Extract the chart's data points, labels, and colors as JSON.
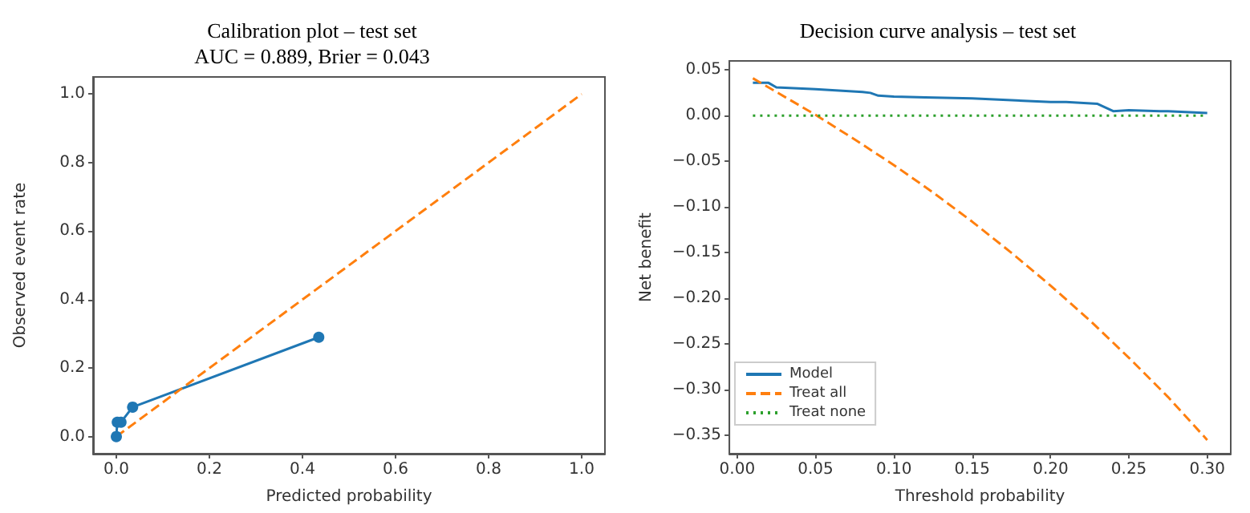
{
  "chart_data": [
    {
      "type": "line",
      "title": "Calibration plot – test set\nAUC = 0.889, Brier = 0.043",
      "xlabel": "Predicted probability",
      "ylabel": "Observed event rate",
      "xlim": [
        -0.05,
        1.05
      ],
      "ylim": [
        -0.05,
        1.05
      ],
      "xticks": [
        {
          "value": 0,
          "label": "0.0"
        },
        0.2,
        0.4,
        0.6,
        0.8,
        {
          "value": 1,
          "label": "1.0"
        }
      ],
      "yticks": [
        {
          "value": 0,
          "label": "0.0"
        },
        0.2,
        0.4,
        0.6,
        0.8,
        {
          "value": 1,
          "label": "1.0"
        }
      ],
      "grid": false,
      "legend": false,
      "series": [
        {
          "color": "#1f77b4",
          "marker": "circle",
          "line_style": "solid",
          "x": [
            0,
            0.002,
            0.01,
            0.035,
            0.435
          ],
          "values": [
            0,
            0.042,
            0.042,
            0.086,
            0.29
          ]
        },
        {
          "color": "#ff7f0e",
          "marker": "none",
          "line_style": "dashed",
          "x": [
            0,
            1
          ],
          "values": [
            0,
            1
          ]
        }
      ]
    },
    {
      "type": "line",
      "title": "Decision curve analysis – test set",
      "xlabel": "Threshold probability",
      "ylabel": "Net benefit",
      "xlim": [
        -0.005,
        0.315
      ],
      "ylim": [
        -0.37,
        0.06
      ],
      "xticks": [
        {
          "value": 0,
          "label": "0.00"
        },
        0.05,
        {
          "value": 0.1,
          "label": "0.10"
        },
        0.15,
        {
          "value": 0.2,
          "label": "0.20"
        },
        0.25,
        {
          "value": 0.3,
          "label": "0.30"
        }
      ],
      "yticks": [
        -0.35,
        {
          "value": -0.3,
          "label": "−0.30"
        },
        -0.25,
        {
          "value": -0.2,
          "label": "−0.20"
        },
        -0.15,
        {
          "value": -0.1,
          "label": "−0.10"
        },
        -0.05,
        {
          "value": 0,
          "label": "0.00"
        },
        0.05
      ],
      "grid": false,
      "legend": "bottom left",
      "marker": "none",
      "series": [
        {
          "name": "Model",
          "color": "#1f77b4",
          "line_style": "solid",
          "x": [
            0.01,
            0.02,
            0.025,
            0.05,
            0.08,
            0.085,
            0.09,
            0.1,
            0.12,
            0.15,
            0.2,
            0.21,
            0.23,
            0.235,
            0.24,
            0.25,
            0.27,
            0.275,
            0.3
          ],
          "values": [
            0.036,
            0.036,
            0.031,
            0.029,
            0.026,
            0.025,
            0.022,
            0.021,
            0.02,
            0.019,
            0.015,
            0.015,
            0.013,
            0.009,
            0.005,
            0.006,
            0.005,
            0.005,
            0.003
          ]
        },
        {
          "name": "Treat all",
          "color": "#ff7f0e",
          "line_style": "dashed",
          "x": [
            0.01,
            0.025,
            0.05,
            0.075,
            0.1,
            0.125,
            0.15,
            0.175,
            0.2,
            0.225,
            0.25,
            0.275,
            0.3
          ],
          "values": [
            0.041,
            0.026,
            0.001,
            -0.026,
            -0.054,
            -0.084,
            -0.116,
            -0.15,
            -0.186,
            -0.224,
            -0.265,
            -0.308,
            -0.355
          ]
        },
        {
          "name": "Treat none",
          "color": "#2ca02c",
          "line_style": "dotted",
          "x": [
            0.01,
            0.3
          ],
          "values": [
            0,
            0
          ]
        }
      ]
    }
  ]
}
